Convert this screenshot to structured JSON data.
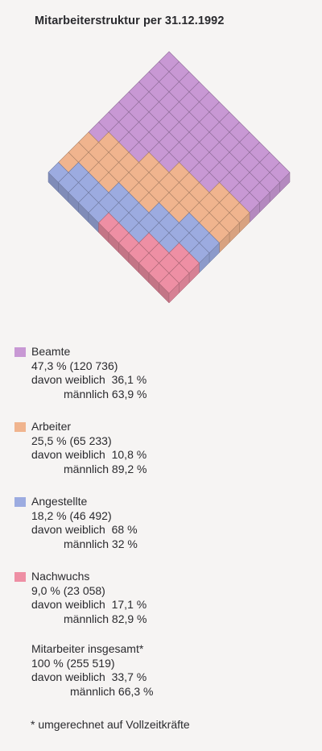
{
  "title": "Mitarbeiterstruktur per 31.12.1992",
  "chart_data": {
    "type": "cube-grid",
    "categories": [
      {
        "key": "beamte",
        "label": "Beamte",
        "percent": 47.3,
        "count_text": "(120 736)",
        "female": "36,1 %",
        "male": "63,9 %",
        "color": "#c898d4"
      },
      {
        "key": "arbeiter",
        "label": "Arbeiter",
        "percent": 25.5,
        "count_text": "(65 233)",
        "female": "10,8 %",
        "male": "89,2 %",
        "color": "#f0b48e"
      },
      {
        "key": "angestellte",
        "label": "Angestellte",
        "percent": 18.2,
        "count_text": "(46 492)",
        "female": "68 %",
        "male": "32 %",
        "color": "#9cabe0"
      },
      {
        "key": "nachwuchs",
        "label": "Nachwuchs",
        "percent": 9.0,
        "count_text": "(23 058)",
        "female": "17,1 %",
        "male": "82,9 %",
        "color": "#ee8fa4"
      }
    ]
  },
  "legend": [
    {
      "label": "Beamte",
      "value": "47,3 % (120 736)",
      "female": "davon weiblich  36,1 %",
      "male": "männlich 63,9 %",
      "color": "#c898d4"
    },
    {
      "label": "Arbeiter",
      "value": "25,5 % (65 233)",
      "female": "davon weiblich  10,8 %",
      "male": "männlich 89,2 %",
      "color": "#f0b48e"
    },
    {
      "label": "Angestellte",
      "value": "18,2 % (46 492)",
      "female": "davon weiblich  68 %",
      "male": "männlich 32 %",
      "color": "#9cabe0"
    },
    {
      "label": "Nachwuchs",
      "value": "9,0 % (23 058)",
      "female": "davon weiblich  17,1 %",
      "male": "männlich 82,9 %",
      "color": "#ee8fa4"
    }
  ],
  "total": {
    "label": "Mitarbeiter insgesamt*",
    "value": "100 % (255 519)",
    "female": "davon weiblich  33,7 %",
    "male": "männlich 66,3 %"
  },
  "footnote": "* umgerechnet auf Vollzeitkräfte"
}
